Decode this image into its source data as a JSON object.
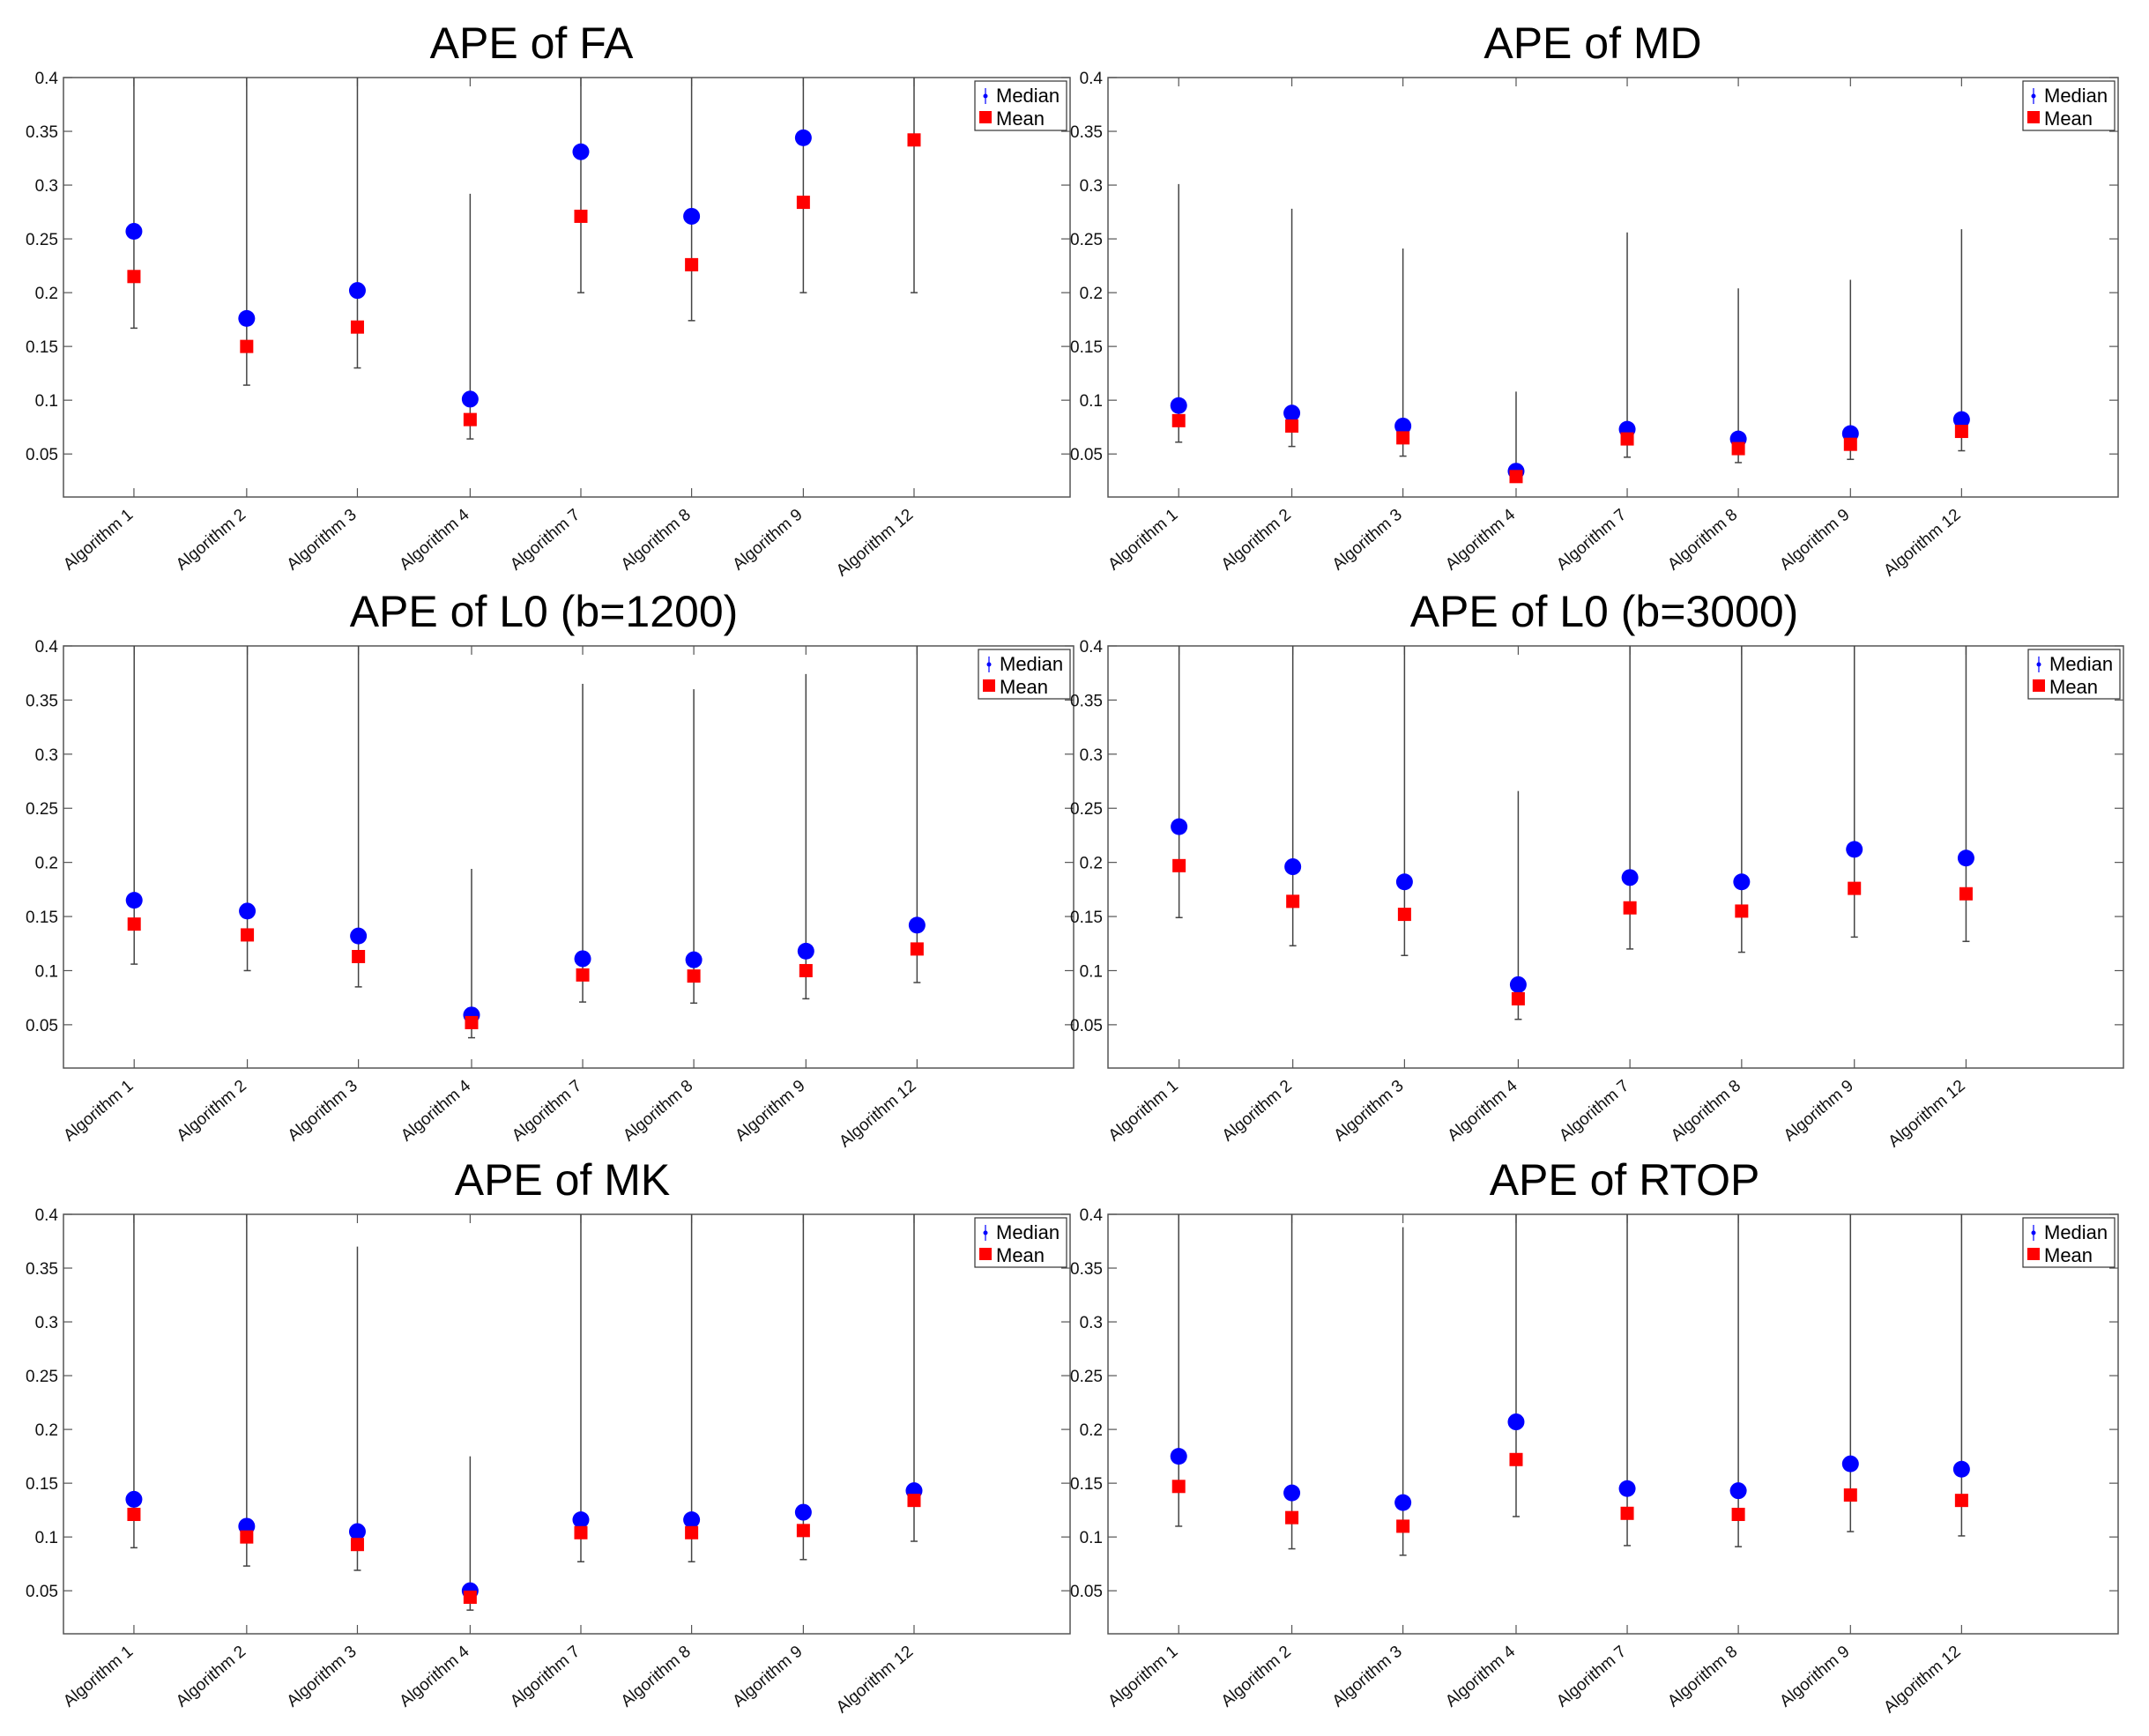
{
  "colors": {
    "median": "#0000ff",
    "mean": "#ff0000",
    "whisker": "#444444",
    "axis": "#555555"
  },
  "chart_data": [
    {
      "type": "scatter",
      "title": "APE of FA",
      "categories": [
        "Algorithm 1",
        "Algorithm 2",
        "Algorithm 3",
        "Algorithm 4",
        "Algorithm 7",
        "Algorithm 8",
        "Algorithm 9",
        "Algorithm 12"
      ],
      "yticks": [
        "0.05",
        "0.1",
        "0.15",
        "0.2",
        "0.25",
        "0.3",
        "0.35",
        "0.4"
      ],
      "ylim": [
        0.01,
        0.4
      ],
      "legend": [
        "Median",
        "Mean"
      ],
      "series": [
        {
          "name": "Median",
          "values": [
            0.257,
            0.176,
            0.202,
            0.101,
            0.331,
            0.271,
            0.344,
            null
          ]
        },
        {
          "name": "Mean",
          "values": [
            0.215,
            0.15,
            0.168,
            0.082,
            0.271,
            0.226,
            0.284,
            0.342
          ]
        }
      ],
      "whisker_low": [
        0.167,
        0.114,
        0.13,
        0.064,
        0.2,
        0.174,
        0.2,
        0.2
      ],
      "whisker_high": [
        0.4,
        0.4,
        0.4,
        0.292,
        0.4,
        0.4,
        0.4,
        0.4
      ]
    },
    {
      "type": "scatter",
      "title": "APE of MD",
      "categories": [
        "Algorithm 1",
        "Algorithm 2",
        "Algorithm 3",
        "Algorithm 4",
        "Algorithm 7",
        "Algorithm 8",
        "Algorithm 9",
        "Algorithm 12"
      ],
      "yticks": [
        "0.05",
        "0.1",
        "0.15",
        "0.2",
        "0.25",
        "0.3",
        "0.35",
        "0.4"
      ],
      "ylim": [
        0.01,
        0.4
      ],
      "legend": [
        "Median",
        "Mean"
      ],
      "series": [
        {
          "name": "Median",
          "values": [
            0.095,
            0.088,
            0.076,
            0.034,
            0.073,
            0.064,
            0.069,
            0.082
          ]
        },
        {
          "name": "Mean",
          "values": [
            0.081,
            0.076,
            0.065,
            0.029,
            0.064,
            0.055,
            0.059,
            0.071
          ]
        }
      ],
      "whisker_low": [
        0.061,
        0.057,
        0.048,
        0.024,
        0.047,
        0.042,
        0.045,
        0.053
      ],
      "whisker_high": [
        0.301,
        0.278,
        0.241,
        0.108,
        0.256,
        0.204,
        0.212,
        0.259
      ]
    },
    {
      "type": "scatter",
      "title": "APE of L0 (b=1200)",
      "categories": [
        "Algorithm 1",
        "Algorithm 2",
        "Algorithm 3",
        "Algorithm 4",
        "Algorithm 7",
        "Algorithm 8",
        "Algorithm 9",
        "Algorithm 12"
      ],
      "yticks": [
        "0.05",
        "0.1",
        "0.15",
        "0.2",
        "0.25",
        "0.3",
        "0.35",
        "0.4"
      ],
      "ylim": [
        0.01,
        0.4
      ],
      "legend": [
        "Median",
        "Mean"
      ],
      "series": [
        {
          "name": "Median",
          "values": [
            0.165,
            0.155,
            0.132,
            0.059,
            0.111,
            0.11,
            0.118,
            0.142
          ]
        },
        {
          "name": "Mean",
          "values": [
            0.143,
            0.133,
            0.113,
            0.052,
            0.096,
            0.095,
            0.1,
            0.12
          ]
        }
      ],
      "whisker_low": [
        0.106,
        0.1,
        0.085,
        0.038,
        0.071,
        0.07,
        0.074,
        0.089
      ],
      "whisker_high": [
        0.4,
        0.4,
        0.4,
        0.194,
        0.365,
        0.36,
        0.374,
        0.4
      ]
    },
    {
      "type": "scatter",
      "title": "APE of L0 (b=3000)",
      "categories": [
        "Algorithm 1",
        "Algorithm 2",
        "Algorithm 3",
        "Algorithm 4",
        "Algorithm 7",
        "Algorithm 8",
        "Algorithm 9",
        "Algorithm 12"
      ],
      "yticks": [
        "0.05",
        "0.1",
        "0.15",
        "0.2",
        "0.25",
        "0.3",
        "0.35",
        "0.4"
      ],
      "ylim": [
        0.01,
        0.4
      ],
      "legend": [
        "Median",
        "Mean"
      ],
      "series": [
        {
          "name": "Median",
          "values": [
            0.233,
            0.196,
            0.182,
            0.087,
            0.186,
            0.182,
            0.212,
            0.204
          ]
        },
        {
          "name": "Mean",
          "values": [
            0.197,
            0.164,
            0.152,
            0.074,
            0.158,
            0.155,
            0.176,
            0.171
          ]
        }
      ],
      "whisker_low": [
        0.149,
        0.123,
        0.114,
        0.055,
        0.12,
        0.117,
        0.131,
        0.127
      ],
      "whisker_high": [
        0.4,
        0.4,
        0.4,
        0.266,
        0.4,
        0.4,
        0.4,
        0.4
      ]
    },
    {
      "type": "scatter",
      "title": "APE of MK",
      "categories": [
        "Algorithm 1",
        "Algorithm 2",
        "Algorithm 3",
        "Algorithm 4",
        "Algorithm 7",
        "Algorithm 8",
        "Algorithm 9",
        "Algorithm 12"
      ],
      "yticks": [
        "0.05",
        "0.1",
        "0.15",
        "0.2",
        "0.25",
        "0.3",
        "0.35",
        "0.4"
      ],
      "ylim": [
        0.01,
        0.4
      ],
      "legend": [
        "Median",
        "Mean"
      ],
      "series": [
        {
          "name": "Median",
          "values": [
            0.135,
            0.11,
            0.105,
            0.05,
            0.116,
            0.116,
            0.123,
            0.143
          ]
        },
        {
          "name": "Mean",
          "values": [
            0.121,
            0.1,
            0.093,
            0.044,
            0.104,
            0.104,
            0.106,
            0.134
          ]
        }
      ],
      "whisker_low": [
        0.09,
        0.073,
        0.069,
        0.032,
        0.077,
        0.077,
        0.079,
        0.096
      ],
      "whisker_high": [
        0.4,
        0.4,
        0.37,
        0.175,
        0.4,
        0.4,
        0.4,
        0.4
      ]
    },
    {
      "type": "scatter",
      "title": "APE of RTOP",
      "categories": [
        "Algorithm 1",
        "Algorithm 2",
        "Algorithm 3",
        "Algorithm 4",
        "Algorithm 7",
        "Algorithm 8",
        "Algorithm 9",
        "Algorithm 12"
      ],
      "yticks": [
        "0.05",
        "0.1",
        "0.15",
        "0.2",
        "0.25",
        "0.3",
        "0.35",
        "0.4"
      ],
      "ylim": [
        0.01,
        0.4
      ],
      "legend": [
        "Median",
        "Mean"
      ],
      "series": [
        {
          "name": "Median",
          "values": [
            0.175,
            0.141,
            0.132,
            0.207,
            0.145,
            0.143,
            0.168,
            0.163
          ]
        },
        {
          "name": "Mean",
          "values": [
            0.147,
            0.118,
            0.11,
            0.172,
            0.122,
            0.121,
            0.139,
            0.134
          ]
        }
      ],
      "whisker_low": [
        0.11,
        0.089,
        0.083,
        0.119,
        0.092,
        0.091,
        0.105,
        0.101
      ],
      "whisker_high": [
        0.4,
        0.4,
        0.388,
        0.4,
        0.4,
        0.4,
        0.4,
        0.4
      ]
    }
  ]
}
